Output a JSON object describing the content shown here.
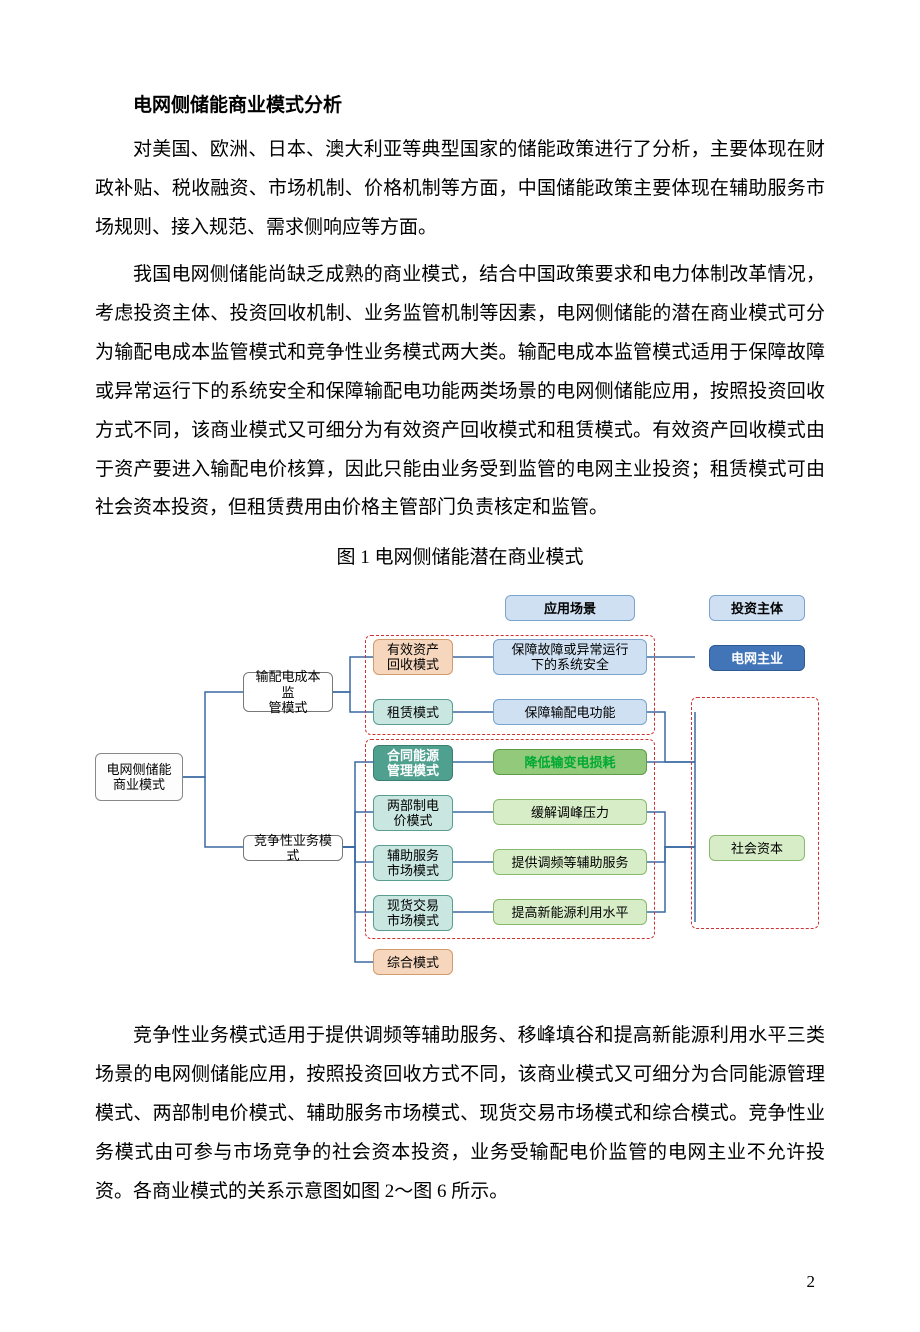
{
  "doc": {
    "heading": "电网侧储能商业模式分析",
    "p1": "对美国、欧洲、日本、澳大利亚等典型国家的储能政策进行了分析，主要体现在财政补贴、税收融资、市场机制、价格机制等方面，中国储能政策主要体现在辅助服务市场规则、接入规范、需求侧响应等方面。",
    "p2": "我国电网侧储能尚缺乏成熟的商业模式，结合中国政策要求和电力体制改革情况，考虑投资主体、投资回收机制、业务监管机制等因素，电网侧储能的潜在商业模式可分为输配电成本监管模式和竞争性业务模式两大类。输配电成本监管模式适用于保障故障或异常运行下的系统安全和保障输配电功能两类场景的电网侧储能应用，按照投资回收方式不同，该商业模式又可细分为有效资产回收模式和租赁模式。有效资产回收模式由于资产要进入输配电价核算，因此只能由业务受到监管的电网主业投资；租赁模式可由社会资本投资，但租赁费用由价格主管部门负责核定和监管。",
    "caption": "图 1  电网侧储能潜在商业模式",
    "p3": "竞争性业务模式适用于提供调频等辅助服务、移峰填谷和提高新能源利用水平三类场景的电网侧储能应用，按照投资回收方式不同，该商业模式又可细分为合同能源管理模式、两部制电价模式、辅助服务市场模式、现货交易市场模式和综合模式。竞争性业务模式由可参与市场竞争的社会资本投资，业务受输配电价监管的电网主业不允许投资。各商业模式的关系示意图如图 2～图 6 所示。",
    "pageNumber": "2"
  },
  "diagram": {
    "root": "电网侧储能\n商业模式",
    "branch1": "输配电成本监\n管模式",
    "branch2": "竞争性业务模式",
    "modes": {
      "m1": "有效资产\n回收模式",
      "m2": "租赁模式",
      "m3": "合同能源\n管理模式",
      "m4": "两部制电\n价模式",
      "m5": "辅助服务\n市场模式",
      "m6": "现货交易\n市场模式",
      "m7": "综合模式"
    },
    "headers": {
      "h1": "应用场景",
      "h2": "投资主体"
    },
    "scenes": {
      "s1": "保障故障或异常运行\n下的系统安全",
      "s2": "保障输配电功能",
      "s3": "降低输变电损耗",
      "s4": "缓解调峰压力",
      "s5": "提供调频等辅助服务",
      "s6": "提高新能源利用水平"
    },
    "investors": {
      "i1": "电网主业",
      "i2": "社会资本"
    },
    "colors": {
      "teal_fill": "#c9e6e0",
      "orange_fill": "#f6d6bd",
      "blue_fill": "#cfe0f2",
      "green_dark": "#93c97b",
      "green_light": "#d7edc7",
      "dash_border": "#c33",
      "edge": "#3a6aa3"
    }
  }
}
